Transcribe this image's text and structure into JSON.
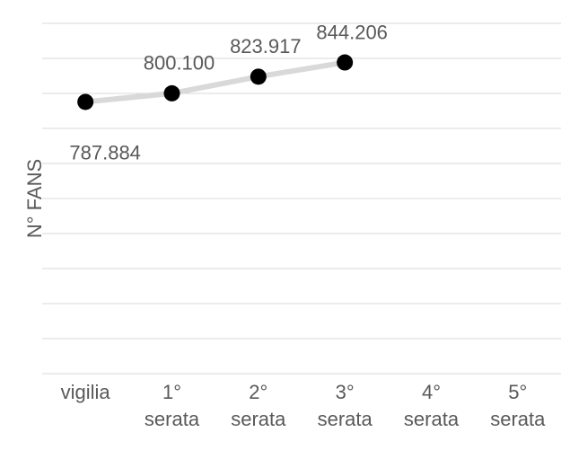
{
  "chart_data": {
    "type": "line",
    "y_label": "N° FANS",
    "categories": [
      "vigilia",
      "1° serata",
      "2° serata",
      "3° serata",
      "4° serata",
      "5° serata"
    ],
    "values": [
      787884,
      800100,
      823917,
      844206,
      null,
      null
    ],
    "value_labels": [
      "787.884",
      "800.100",
      "823.917",
      "844.206",
      null,
      null
    ],
    "color": "#d9d9d9",
    "marker_color": "#000000",
    "ylim": [
      400000,
      900000
    ],
    "yticks": [
      400000,
      450000,
      500000,
      550000,
      600000,
      650000,
      700000,
      750000,
      800000,
      850000,
      900000
    ],
    "grid": true
  }
}
